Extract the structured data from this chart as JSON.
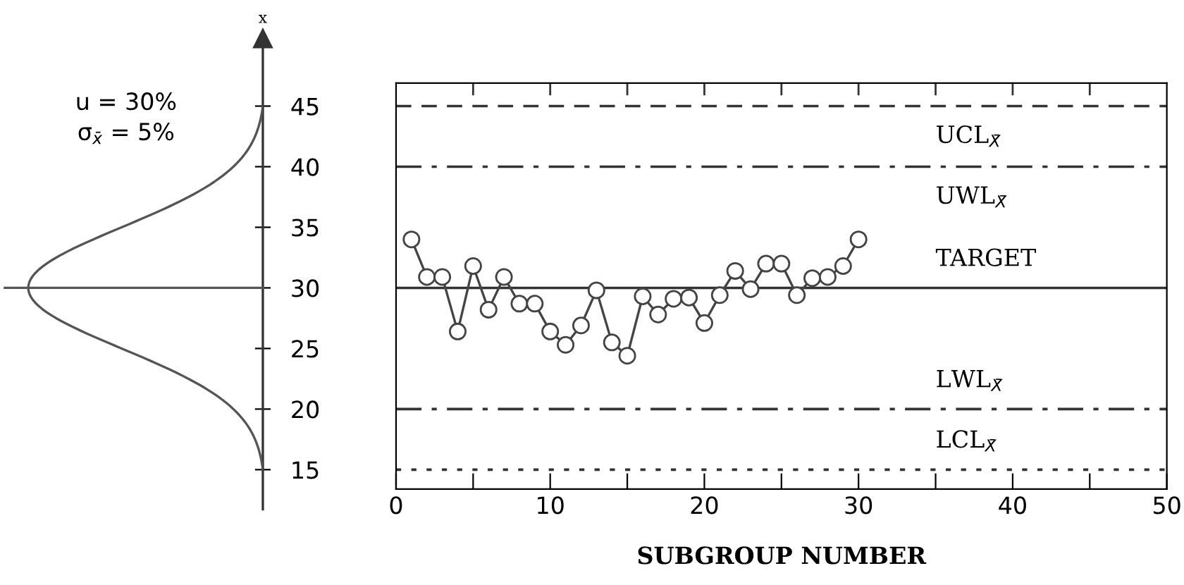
{
  "chart_data": {
    "type": "line",
    "xlabel": "SUBGROUP NUMBER",
    "ylabel": "x",
    "marker": "circle",
    "color": "#444444",
    "annotations": [
      "u = 30%",
      "σ$_{x̄}$ = 5%"
    ],
    "x": [
      1,
      2,
      3,
      4,
      5,
      6,
      7,
      8,
      9,
      10,
      11,
      12,
      13,
      14,
      15,
      16,
      17,
      18,
      19,
      20,
      21,
      22,
      23,
      24,
      25,
      26,
      27,
      28,
      29,
      30
    ],
    "values": [
      34,
      30.9,
      30.9,
      26.4,
      31.8,
      28.2,
      30.9,
      28.7,
      28.7,
      26.4,
      25.3,
      26.9,
      29.8,
      25.5,
      24.4,
      29.3,
      27.8,
      29.1,
      29.2,
      27.1,
      29.4,
      31.4,
      29.9,
      32,
      32,
      29.4,
      30.8,
      30.9,
      31.8,
      34
    ],
    "xlim": [
      0,
      50
    ],
    "xticks": [
      0,
      {
        "value": 5,
        "label": null
      },
      10,
      {
        "value": 15,
        "label": null
      },
      20,
      {
        "value": 25,
        "label": null
      },
      30,
      {
        "value": 35,
        "label": null
      },
      40,
      {
        "value": 45,
        "label": null
      },
      50
    ],
    "ylim": [
      13.4,
      46.9
    ],
    "yticks": [
      15,
      20,
      25,
      30,
      35,
      40,
      45
    ],
    "ref_lines": [
      {
        "axis": "y",
        "value": 45,
        "label": "UCL$_{X̄}$",
        "color": "#333333",
        "line_style": "dashed"
      },
      {
        "axis": "y",
        "value": 40,
        "label": "UWL$_{X̄}$",
        "color": "#333333",
        "line_style": "dashdot"
      },
      {
        "axis": "y",
        "value": 30,
        "label": "TARGET",
        "color": "#333333",
        "line_style": "solid"
      },
      {
        "axis": "y",
        "value": 20,
        "label": "LWL$_{X̄}$",
        "color": "#333333",
        "line_style": "dashdot"
      },
      {
        "axis": "y",
        "value": 15,
        "label": "LCL$_{X̄}$",
        "color": "#333333",
        "line_style": "dotted"
      }
    ]
  }
}
